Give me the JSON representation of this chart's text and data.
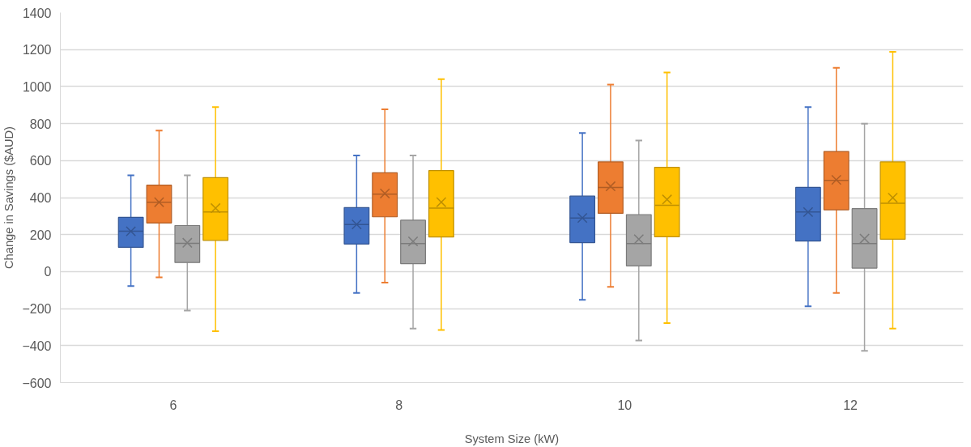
{
  "chart_data": {
    "type": "box",
    "xlabel": "System Size (kW)",
    "ylabel": "Change in Savings ($AUD)",
    "categories": [
      "6",
      "8",
      "10",
      "12"
    ],
    "ylim": [
      -600,
      1400
    ],
    "yticks": [
      -600,
      -400,
      -200,
      0,
      200,
      400,
      600,
      800,
      1000,
      1200,
      1400
    ],
    "grid": "y",
    "marker": "cross",
    "series": [
      {
        "color": "#4472c4",
        "boxes": [
          {
            "low": -78,
            "q1": 131,
            "median": 218,
            "q3": 293,
            "high": 520,
            "mean": 218
          },
          {
            "low": -115,
            "q1": 149,
            "median": 255,
            "q3": 346,
            "high": 628,
            "mean": 255
          },
          {
            "low": -152,
            "q1": 157,
            "median": 290,
            "q3": 408,
            "high": 749,
            "mean": 290
          },
          {
            "low": -187,
            "q1": 165,
            "median": 322,
            "q3": 455,
            "high": 889,
            "mean": 322
          }
        ]
      },
      {
        "color": "#ed7d31",
        "boxes": [
          {
            "low": -31,
            "q1": 263,
            "median": 375,
            "q3": 467,
            "high": 762,
            "mean": 375
          },
          {
            "low": -60,
            "q1": 296,
            "median": 419,
            "q3": 534,
            "high": 877,
            "mean": 422
          },
          {
            "low": -82,
            "q1": 315,
            "median": 455,
            "q3": 593,
            "high": 1010,
            "mean": 461
          },
          {
            "low": -115,
            "q1": 334,
            "median": 493,
            "q3": 649,
            "high": 1101,
            "mean": 496
          }
        ]
      },
      {
        "color": "#a5a5a5",
        "boxes": [
          {
            "low": -210,
            "q1": 49,
            "median": 153,
            "q3": 249,
            "high": 520,
            "mean": 156
          },
          {
            "low": -308,
            "q1": 43,
            "median": 152,
            "q3": 278,
            "high": 628,
            "mean": 163
          },
          {
            "low": -372,
            "q1": 31,
            "median": 152,
            "q3": 308,
            "high": 708,
            "mean": 175
          },
          {
            "low": -428,
            "q1": 19,
            "median": 152,
            "q3": 340,
            "high": 799,
            "mean": 178
          }
        ]
      },
      {
        "color": "#ffc000",
        "boxes": [
          {
            "low": -322,
            "q1": 169,
            "median": 322,
            "q3": 508,
            "high": 889,
            "mean": 343
          },
          {
            "low": -315,
            "q1": 187,
            "median": 343,
            "q3": 546,
            "high": 1040,
            "mean": 375
          },
          {
            "low": -278,
            "q1": 188,
            "median": 358,
            "q3": 564,
            "high": 1076,
            "mean": 390
          },
          {
            "low": -308,
            "q1": 175,
            "median": 369,
            "q3": 593,
            "high": 1188,
            "mean": 399
          }
        ]
      }
    ]
  }
}
